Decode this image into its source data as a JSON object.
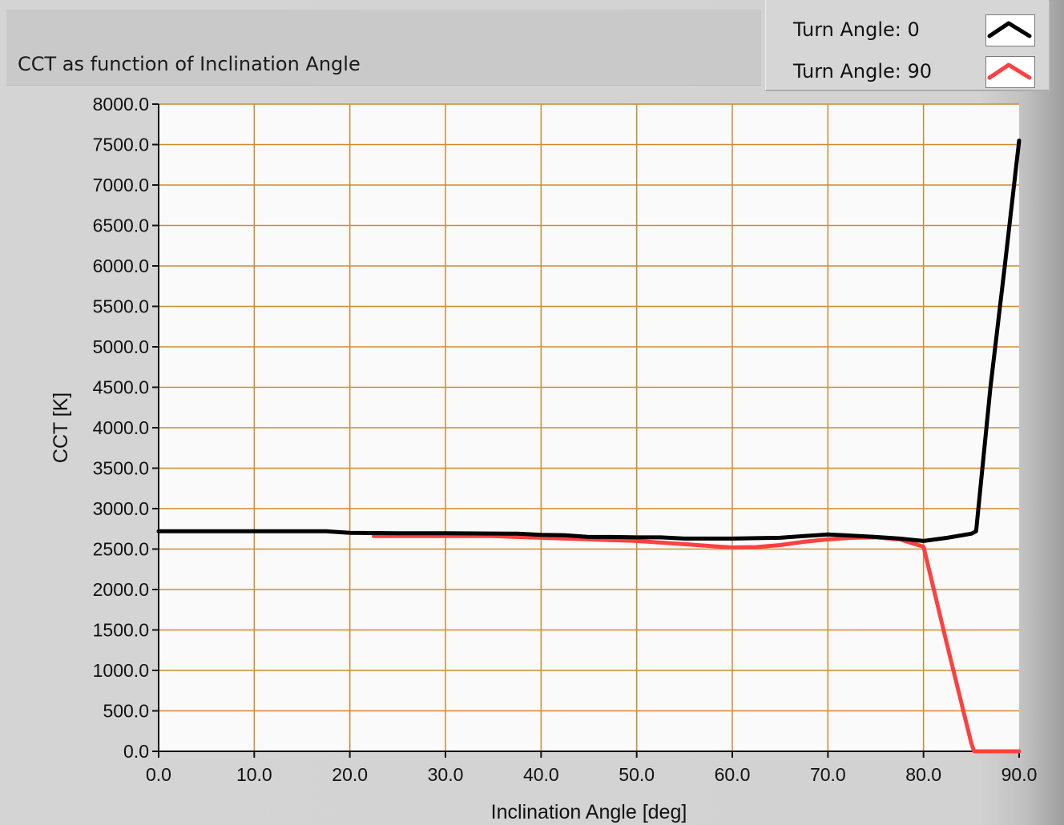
{
  "window": {
    "title": "CCT as function of Inclination Angle"
  },
  "legend": {
    "items": [
      {
        "label": "Turn Angle:  0",
        "color": "#000000"
      },
      {
        "label": "Turn Angle:  90",
        "color": "#ff4040"
      }
    ]
  },
  "colors": {
    "plot_background": "#fafafa",
    "grid": "#d18a2c",
    "axis_text": "#111111"
  },
  "chart_data": {
    "type": "line",
    "title": "CCT as function of Inclination Angle",
    "xlabel": "Inclination Angle [deg]",
    "ylabel": "CCT [K]",
    "xlim": [
      0,
      90
    ],
    "ylim": [
      0,
      8000
    ],
    "grid": true,
    "legend_position": "top-right",
    "x_ticks": [
      "0.0",
      "10.0",
      "20.0",
      "30.0",
      "40.0",
      "50.0",
      "60.0",
      "70.0",
      "80.0",
      "90.0"
    ],
    "y_ticks": [
      "0.0",
      "500.0",
      "1000.0",
      "1500.0",
      "2000.0",
      "2500.0",
      "3000.0",
      "3500.0",
      "4000.0",
      "4500.0",
      "5000.0",
      "5500.0",
      "6000.0",
      "6500.0",
      "7000.0",
      "7500.0",
      "8000.0"
    ],
    "series": [
      {
        "name": "Turn Angle:  0",
        "color": "#000000",
        "x": [
          0,
          5,
          10,
          17.5,
          20,
          25,
          30,
          37.5,
          40,
          42.5,
          45,
          47.5,
          50,
          52.5,
          55,
          57.5,
          60,
          62.5,
          65,
          67.5,
          70,
          72.5,
          75,
          77.5,
          80,
          82.5,
          85,
          85.5,
          87,
          88.5,
          90
        ],
        "y": [
          2720,
          2720,
          2720,
          2720,
          2700,
          2695,
          2695,
          2690,
          2675,
          2670,
          2650,
          2650,
          2645,
          2645,
          2630,
          2630,
          2630,
          2635,
          2640,
          2660,
          2680,
          2665,
          2650,
          2630,
          2600,
          2640,
          2690,
          2720,
          4500,
          6000,
          7550
        ]
      },
      {
        "name": "Turn Angle:  90",
        "color": "#ff4040",
        "x": [
          22.5,
          25,
          30,
          35,
          37.5,
          40,
          42.5,
          45,
          50,
          52.5,
          55,
          57.5,
          60,
          62.5,
          65,
          67.5,
          70,
          72.5,
          75,
          77.5,
          80,
          82.5,
          85,
          85.3,
          87.5,
          90
        ],
        "y": [
          2660,
          2660,
          2660,
          2660,
          2650,
          2640,
          2630,
          2620,
          2600,
          2580,
          2560,
          2540,
          2520,
          2525,
          2550,
          2590,
          2620,
          2640,
          2645,
          2620,
          2530,
          1300,
          100,
          0,
          0,
          0
        ]
      }
    ]
  }
}
